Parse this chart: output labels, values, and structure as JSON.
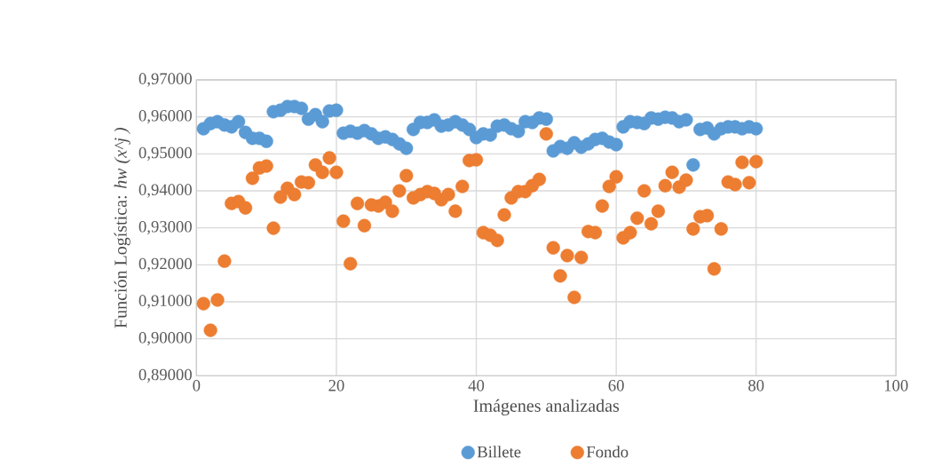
{
  "chart_data": {
    "type": "scatter",
    "xlabel": "Imágenes analizadas",
    "ylabel": "Función Logística: *hw (x^j )*",
    "xlim": [
      0,
      100
    ],
    "xticks": [
      0,
      20,
      40,
      60,
      80,
      100
    ],
    "ylim": [
      0.89,
      0.97
    ],
    "yticks": [
      {
        "value": 0.89,
        "label": "0,89000"
      },
      {
        "value": 0.9,
        "label": "0,90000"
      },
      {
        "value": 0.91,
        "label": "0,91000"
      },
      {
        "value": 0.92,
        "label": "0,92000"
      },
      {
        "value": 0.93,
        "label": "0,93000"
      },
      {
        "value": 0.94,
        "label": "0,94000"
      },
      {
        "value": 0.95,
        "label": "0,95000"
      },
      {
        "value": 0.96,
        "label": "0,96000"
      },
      {
        "value": 0.97,
        "label": "0,97000"
      }
    ],
    "grid": true,
    "legend": "bottom",
    "marker": "circle",
    "x": [
      1,
      2,
      3,
      4,
      5,
      6,
      7,
      8,
      9,
      10,
      11,
      12,
      13,
      14,
      15,
      16,
      17,
      18,
      19,
      20,
      21,
      22,
      23,
      24,
      25,
      26,
      27,
      28,
      29,
      30,
      31,
      32,
      33,
      34,
      35,
      36,
      37,
      38,
      39,
      40,
      41,
      42,
      43,
      44,
      45,
      46,
      47,
      48,
      49,
      50,
      51,
      52,
      53,
      54,
      55,
      56,
      57,
      58,
      59,
      60,
      61,
      62,
      63,
      64,
      65,
      66,
      67,
      68,
      69,
      70,
      71,
      72,
      73,
      74,
      75,
      76,
      77,
      78,
      79,
      80
    ],
    "series": [
      {
        "name": "Billete",
        "color": "#5b9bd5",
        "values": [
          0.9568,
          0.9582,
          0.9587,
          0.9578,
          0.9573,
          0.9587,
          0.9558,
          0.9542,
          0.9542,
          0.9534,
          0.9614,
          0.9618,
          0.9628,
          0.9628,
          0.9623,
          0.9594,
          0.9606,
          0.9587,
          0.9616,
          0.9618,
          0.9556,
          0.9561,
          0.9556,
          0.9563,
          0.9554,
          0.9542,
          0.9546,
          0.9539,
          0.9527,
          0.9515,
          0.9566,
          0.9585,
          0.9585,
          0.9592,
          0.9575,
          0.9578,
          0.9587,
          0.9578,
          0.9566,
          0.9544,
          0.9554,
          0.9551,
          0.9575,
          0.9578,
          0.9568,
          0.9561,
          0.9587,
          0.9585,
          0.9597,
          0.9594,
          0.9508,
          0.952,
          0.9515,
          0.953,
          0.9518,
          0.9527,
          0.9539,
          0.9542,
          0.9532,
          0.9525,
          0.9573,
          0.9587,
          0.9585,
          0.9582,
          0.9597,
          0.9594,
          0.9599,
          0.9597,
          0.9587,
          0.9592,
          0.947,
          0.9566,
          0.957,
          0.9554,
          0.9568,
          0.9573,
          0.9573,
          0.9568,
          0.9573,
          0.9568
        ]
      },
      {
        "name": "Fondo",
        "color": "#ed7d31",
        "values": [
          0.9095,
          0.9023,
          0.9105,
          0.921,
          0.9366,
          0.9371,
          0.9354,
          0.9434,
          0.9462,
          0.9467,
          0.9299,
          0.9383,
          0.9407,
          0.939,
          0.9424,
          0.9422,
          0.947,
          0.945,
          0.9489,
          0.945,
          0.9318,
          0.9203,
          0.9366,
          0.9306,
          0.9362,
          0.9359,
          0.9369,
          0.9345,
          0.94,
          0.9441,
          0.9381,
          0.939,
          0.9398,
          0.9393,
          0.9376,
          0.939,
          0.9345,
          0.9412,
          0.9482,
          0.9484,
          0.9287,
          0.928,
          0.9266,
          0.9335,
          0.9381,
          0.9398,
          0.9398,
          0.9414,
          0.9431,
          0.9554,
          0.9246,
          0.917,
          0.9225,
          0.9112,
          0.922,
          0.929,
          0.9287,
          0.9359,
          0.9412,
          0.9438,
          0.9273,
          0.9287,
          0.9326,
          0.94,
          0.9311,
          0.9345,
          0.9414,
          0.945,
          0.941,
          0.9429,
          0.9297,
          0.933,
          0.9333,
          0.9189,
          0.9297,
          0.9424,
          0.9417,
          0.9477,
          0.9422,
          0.9479
        ]
      }
    ]
  }
}
